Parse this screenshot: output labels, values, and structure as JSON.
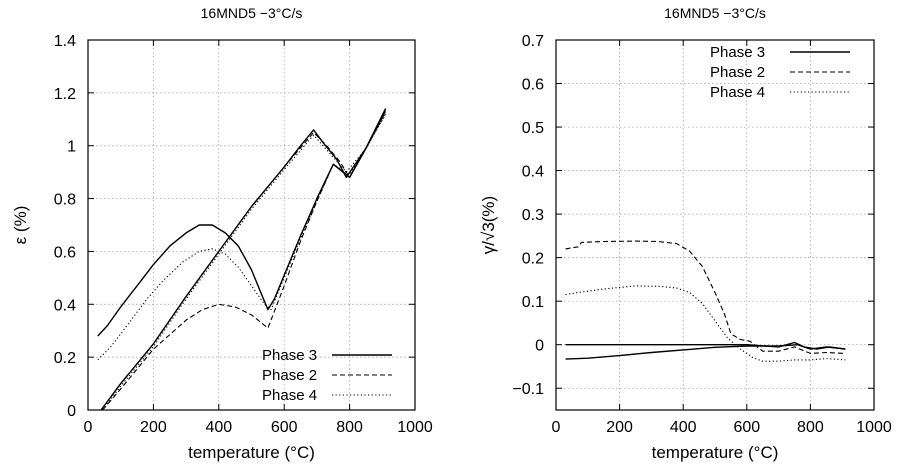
{
  "chart_data": [
    {
      "type": "line",
      "title": "16MND5   −3°C/s",
      "xlabel": "temperature (°C)",
      "ylabel": "ε (%)",
      "xlim": [
        0,
        1000
      ],
      "ylim": [
        0,
        1.4
      ],
      "xticks": [
        0,
        200,
        400,
        600,
        800,
        1000
      ],
      "yticks": [
        0,
        0.2,
        0.4,
        0.6,
        0.8,
        1,
        1.2,
        1.4
      ],
      "xtick_labels": [
        "0",
        "200",
        "400",
        "600",
        "800",
        "1000"
      ],
      "ytick_labels": [
        "0",
        "0.2",
        "0.4",
        "0.6",
        "0.8",
        "1",
        "1.2",
        "1.4"
      ],
      "grid": true,
      "legend_position": "bottom-right",
      "series": [
        {
          "name": "Phase 3",
          "style": "solid",
          "segments": [
            [
              [
                30,
                0.28
              ],
              [
                60,
                0.32
              ],
              [
                100,
                0.39
              ],
              [
                150,
                0.47
              ],
              [
                200,
                0.55
              ],
              [
                250,
                0.62
              ],
              [
                300,
                0.67
              ],
              [
                340,
                0.7
              ],
              [
                380,
                0.7
              ],
              [
                420,
                0.67
              ],
              [
                460,
                0.62
              ],
              [
                500,
                0.53
              ],
              [
                530,
                0.44
              ],
              [
                550,
                0.38
              ],
              [
                570,
                0.42
              ],
              [
                600,
                0.51
              ],
              [
                650,
                0.66
              ],
              [
                700,
                0.8
              ],
              [
                750,
                0.93
              ],
              [
                800,
                0.88
              ],
              [
                850,
                0.99
              ],
              [
                910,
                1.14
              ]
            ],
            [
              [
                40,
                0.0
              ],
              [
                100,
                0.1
              ],
              [
                200,
                0.25
              ],
              [
                300,
                0.43
              ],
              [
                400,
                0.6
              ],
              [
                500,
                0.77
              ],
              [
                600,
                0.92
              ],
              [
                650,
                1.0
              ],
              [
                690,
                1.06
              ],
              [
                720,
                1.01
              ],
              [
                760,
                0.95
              ],
              [
                790,
                0.88
              ],
              [
                850,
                0.99
              ],
              [
                910,
                1.14
              ]
            ]
          ]
        },
        {
          "name": "Phase 2",
          "style": "dashed",
          "segments": [
            [
              [
                45,
                0.0
              ],
              [
                100,
                0.08
              ],
              [
                200,
                0.23
              ],
              [
                300,
                0.34
              ],
              [
                350,
                0.38
              ],
              [
                400,
                0.4
              ],
              [
                450,
                0.39
              ],
              [
                500,
                0.36
              ],
              [
                550,
                0.31
              ],
              [
                600,
                0.47
              ],
              [
                650,
                0.64
              ],
              [
                700,
                0.79
              ],
              [
                750,
                0.93
              ],
              [
                800,
                0.88
              ],
              [
                850,
                0.99
              ],
              [
                910,
                1.13
              ]
            ],
            [
              [
                40,
                0.0
              ],
              [
                100,
                0.1
              ],
              [
                200,
                0.25
              ],
              [
                300,
                0.43
              ],
              [
                400,
                0.6
              ],
              [
                500,
                0.77
              ],
              [
                600,
                0.92
              ],
              [
                690,
                1.05
              ],
              [
                730,
                1.0
              ],
              [
                770,
                0.94
              ],
              [
                800,
                0.88
              ],
              [
                850,
                0.99
              ],
              [
                910,
                1.13
              ]
            ]
          ]
        },
        {
          "name": "Phase 4",
          "style": "dotted",
          "segments": [
            [
              [
                30,
                0.19
              ],
              [
                70,
                0.24
              ],
              [
                120,
                0.32
              ],
              [
                180,
                0.42
              ],
              [
                230,
                0.49
              ],
              [
                290,
                0.56
              ],
              [
                340,
                0.6
              ],
              [
                380,
                0.61
              ],
              [
                420,
                0.59
              ],
              [
                460,
                0.54
              ],
              [
                500,
                0.47
              ],
              [
                540,
                0.4
              ],
              [
                560,
                0.38
              ],
              [
                600,
                0.5
              ],
              [
                650,
                0.65
              ],
              [
                700,
                0.79
              ],
              [
                750,
                0.93
              ],
              [
                800,
                0.89
              ],
              [
                850,
                0.99
              ],
              [
                910,
                1.12
              ]
            ],
            [
              [
                45,
                0.0
              ],
              [
                100,
                0.09
              ],
              [
                200,
                0.24
              ],
              [
                300,
                0.42
              ],
              [
                400,
                0.59
              ],
              [
                500,
                0.76
              ],
              [
                600,
                0.91
              ],
              [
                690,
                1.04
              ],
              [
                740,
                0.97
              ],
              [
                790,
                0.9
              ],
              [
                850,
                0.99
              ],
              [
                910,
                1.12
              ]
            ]
          ]
        }
      ]
    },
    {
      "type": "line",
      "title": "16MND5   −3°C/s",
      "xlabel": "temperature (°C)",
      "ylabel": "γ/√3(%)",
      "xlim": [
        0,
        1000
      ],
      "ylim": [
        -0.15,
        0.7
      ],
      "xticks": [
        0,
        200,
        400,
        600,
        800,
        1000
      ],
      "yticks": [
        -0.1,
        0,
        0.1,
        0.2,
        0.3,
        0.4,
        0.5,
        0.6,
        0.7
      ],
      "xtick_labels": [
        "0",
        "200",
        "400",
        "600",
        "800",
        "1000"
      ],
      "ytick_labels": [
        "−0.1",
        "0",
        "0.1",
        "0.2",
        "0.3",
        "0.4",
        "0.5",
        "0.6",
        "0.7"
      ],
      "grid": true,
      "legend_position": "top-right",
      "series": [
        {
          "name": "Phase 3",
          "style": "solid",
          "segments": [
            [
              [
                30,
                0.0
              ],
              [
                200,
                0.0
              ],
              [
                400,
                0.0
              ],
              [
                600,
                0.0
              ],
              [
                700,
                -0.005
              ],
              [
                750,
                0.005
              ],
              [
                780,
                -0.005
              ],
              [
                820,
                -0.01
              ],
              [
                860,
                -0.005
              ],
              [
                910,
                -0.01
              ]
            ],
            [
              [
                30,
                -0.033
              ],
              [
                100,
                -0.031
              ],
              [
                200,
                -0.025
              ],
              [
                300,
                -0.018
              ],
              [
                400,
                -0.012
              ],
              [
                500,
                -0.006
              ],
              [
                600,
                -0.003
              ],
              [
                700,
                -0.003
              ],
              [
                760,
                0.0
              ],
              [
                800,
                -0.01
              ],
              [
                850,
                -0.005
              ],
              [
                910,
                -0.01
              ]
            ]
          ]
        },
        {
          "name": "Phase 2",
          "style": "dashed",
          "segments": [
            [
              [
                30,
                0.22
              ],
              [
                70,
                0.225
              ],
              [
                80,
                0.235
              ],
              [
                150,
                0.237
              ],
              [
                250,
                0.238
              ],
              [
                320,
                0.237
              ],
              [
                380,
                0.232
              ],
              [
                420,
                0.215
              ],
              [
                460,
                0.18
              ],
              [
                500,
                0.12
              ],
              [
                530,
                0.07
              ],
              [
                550,
                0.025
              ],
              [
                580,
                0.012
              ],
              [
                610,
                0.008
              ],
              [
                650,
                -0.015
              ],
              [
                700,
                -0.015
              ],
              [
                750,
                -0.005
              ],
              [
                800,
                -0.02
              ],
              [
                850,
                -0.018
              ],
              [
                910,
                -0.02
              ]
            ]
          ]
        },
        {
          "name": "Phase 4",
          "style": "dotted",
          "segments": [
            [
              [
                30,
                0.115
              ],
              [
                70,
                0.12
              ],
              [
                150,
                0.128
              ],
              [
                250,
                0.135
              ],
              [
                330,
                0.134
              ],
              [
                380,
                0.13
              ],
              [
                420,
                0.12
              ],
              [
                460,
                0.095
              ],
              [
                500,
                0.055
              ],
              [
                540,
                0.015
              ],
              [
                580,
                -0.01
              ],
              [
                620,
                -0.03
              ],
              [
                650,
                -0.038
              ],
              [
                700,
                -0.038
              ],
              [
                750,
                -0.035
              ],
              [
                800,
                -0.035
              ],
              [
                850,
                -0.032
              ],
              [
                910,
                -0.035
              ]
            ]
          ]
        }
      ]
    }
  ]
}
